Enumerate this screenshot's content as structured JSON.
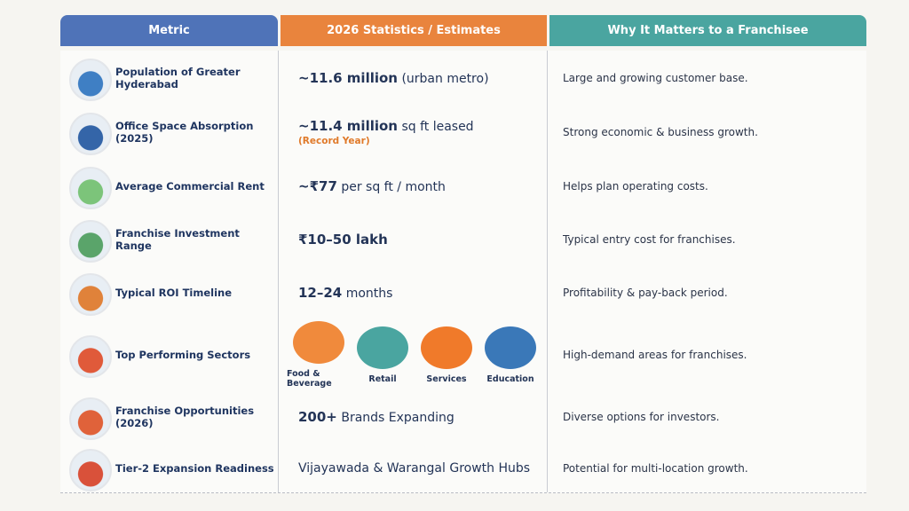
{
  "table": {
    "headers": [
      "Metric",
      "2026 Statistics / Estimates",
      "Why It Matters to a Franchisee"
    ],
    "rows": [
      {
        "metric": "Population of Greater Hyderabad",
        "stat_bold": "~11.6 million",
        "stat_rest": "(urban metro)",
        "why": "Large and growing customer base."
      },
      {
        "metric": "Office Space Absorption (2025)",
        "stat_bold": "~11.4 million",
        "stat_rest": "sq ft leased",
        "note": "(Record Year)",
        "why": "Strong economic & business growth."
      },
      {
        "metric": "Average Commercial Rent",
        "stat_bold": "~₹77",
        "stat_rest": "per sq ft / month",
        "why": "Helps plan operating costs."
      },
      {
        "metric": "Franchise Investment Range",
        "stat_bold": "₹10–50 lakh",
        "why": "Typical entry cost for franchises."
      },
      {
        "metric": "Typical ROI Timeline",
        "stat_bold": "12–24",
        "stat_rest": "months",
        "why": "Profitability & pay-back period."
      },
      {
        "metric": "Top Performing Sectors",
        "sectors": [
          "Food & Beverage",
          "Retail",
          "Services",
          "Education"
        ],
        "why": "High-demand areas for franchises."
      },
      {
        "metric": "Franchise Opportunities (2026)",
        "stat_bold": "200+",
        "stat_rest": "Brands Expanding",
        "why": "Diverse options for investors."
      },
      {
        "metric": "Tier-2 Expansion Readiness",
        "stat_rest": "Vijayawada & Warangal Growth Hubs",
        "why": "Potential for multi-location growth."
      }
    ]
  }
}
